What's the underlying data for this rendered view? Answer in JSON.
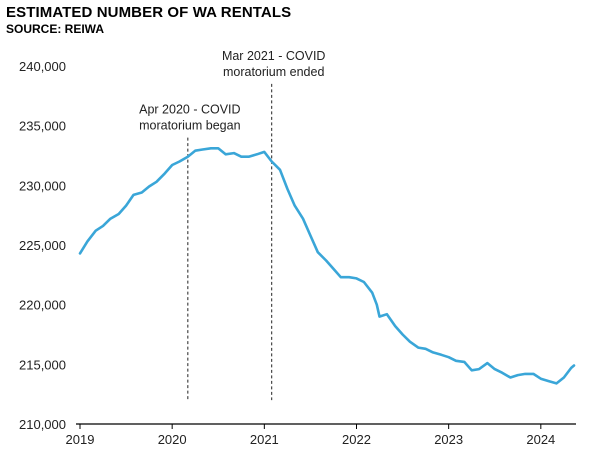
{
  "chart_data": {
    "type": "line",
    "title": "ESTIMATED NUMBER OF WA RENTALS",
    "subtitle": "SOURCE: REIWA",
    "xlabel": "",
    "ylabel": "",
    "ylim": [
      210000,
      240000
    ],
    "xlim": [
      2019.0,
      2024.36
    ],
    "y_ticks": [
      {
        "value": 210000,
        "label": "210,000"
      },
      {
        "value": 215000,
        "label": "215,000"
      },
      {
        "value": 220000,
        "label": "220,000"
      },
      {
        "value": 225000,
        "label": "225,000"
      },
      {
        "value": 230000,
        "label": "230,000"
      },
      {
        "value": 235000,
        "label": "235,000"
      },
      {
        "value": 240000,
        "label": "240,000"
      }
    ],
    "x_ticks": [
      {
        "value": 2019,
        "label": "2019"
      },
      {
        "value": 2020,
        "label": "2020"
      },
      {
        "value": 2021,
        "label": "2021"
      },
      {
        "value": 2022,
        "label": "2022"
      },
      {
        "value": 2023,
        "label": "2023"
      },
      {
        "value": 2024,
        "label": "2024"
      }
    ],
    "series": [
      {
        "name": "Estimated WA rentals",
        "color": "#3aa6d8",
        "points": [
          [
            2019.0,
            224300
          ],
          [
            2019.08,
            225300
          ],
          [
            2019.17,
            226200
          ],
          [
            2019.25,
            226600
          ],
          [
            2019.33,
            227200
          ],
          [
            2019.42,
            227600
          ],
          [
            2019.5,
            228300
          ],
          [
            2019.58,
            229200
          ],
          [
            2019.67,
            229400
          ],
          [
            2019.75,
            229900
          ],
          [
            2019.83,
            230300
          ],
          [
            2019.92,
            231000
          ],
          [
            2020.0,
            231700
          ],
          [
            2020.08,
            232000
          ],
          [
            2020.17,
            232400
          ],
          [
            2020.25,
            232900
          ],
          [
            2020.33,
            233000
          ],
          [
            2020.42,
            233100
          ],
          [
            2020.5,
            233100
          ],
          [
            2020.58,
            232600
          ],
          [
            2020.67,
            232700
          ],
          [
            2020.75,
            232400
          ],
          [
            2020.83,
            232400
          ],
          [
            2020.92,
            232600
          ],
          [
            2021.0,
            232800
          ],
          [
            2021.08,
            232000
          ],
          [
            2021.17,
            231300
          ],
          [
            2021.25,
            229700
          ],
          [
            2021.33,
            228300
          ],
          [
            2021.42,
            227200
          ],
          [
            2021.5,
            225800
          ],
          [
            2021.58,
            224400
          ],
          [
            2021.67,
            223700
          ],
          [
            2021.75,
            223000
          ],
          [
            2021.83,
            222300
          ],
          [
            2021.92,
            222300
          ],
          [
            2022.0,
            222200
          ],
          [
            2022.08,
            221900
          ],
          [
            2022.17,
            221000
          ],
          [
            2022.22,
            220000
          ],
          [
            2022.25,
            219000
          ],
          [
            2022.33,
            219200
          ],
          [
            2022.42,
            218200
          ],
          [
            2022.5,
            217500
          ],
          [
            2022.58,
            216900
          ],
          [
            2022.67,
            216400
          ],
          [
            2022.75,
            216300
          ],
          [
            2022.83,
            216000
          ],
          [
            2022.92,
            215800
          ],
          [
            2023.0,
            215600
          ],
          [
            2023.08,
            215300
          ],
          [
            2023.17,
            215200
          ],
          [
            2023.25,
            214500
          ],
          [
            2023.33,
            214600
          ],
          [
            2023.42,
            215100
          ],
          [
            2023.5,
            214600
          ],
          [
            2023.58,
            214300
          ],
          [
            2023.67,
            213900
          ],
          [
            2023.75,
            214100
          ],
          [
            2023.83,
            214200
          ],
          [
            2023.92,
            214200
          ],
          [
            2024.0,
            213800
          ],
          [
            2024.08,
            213600
          ],
          [
            2024.17,
            213400
          ],
          [
            2024.25,
            213900
          ],
          [
            2024.33,
            214700
          ],
          [
            2024.36,
            214900
          ]
        ]
      }
    ],
    "annotations": [
      {
        "x": 2020.17,
        "lines": [
          "Apr 2020 - COVID",
          "moratorium began"
        ],
        "y_top": 234000
      },
      {
        "x": 2021.08,
        "lines": [
          "Mar 2021 - COVID",
          "moratorium ended"
        ],
        "y_top": 238500
      }
    ]
  }
}
